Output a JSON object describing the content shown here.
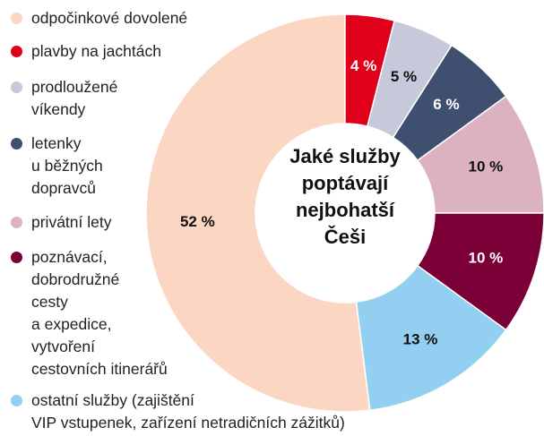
{
  "chart_data": {
    "type": "donut",
    "title": "Jaké služby\npoptávají\nnejbohatší\nČeši",
    "categories": [
      "odpočinkové dovolené",
      "plavby na jachtách",
      "prodloužené\nvíkendy",
      "letenky\nu běžných\ndopravců",
      "privátní lety",
      "poznávací,\ndobrodružné\ncesty\na expedice,\nvytvoření\ncestovních itinerářů",
      "ostatní služby (zajištění\nVIP vstupenek, zařízení netradičních zážitků)"
    ],
    "values": [
      52,
      4,
      5,
      6,
      10,
      10,
      13
    ],
    "value_labels": [
      "52 %",
      "4 %",
      "5 %",
      "6 %",
      "10 %",
      "10 %",
      "13 %"
    ],
    "colors": [
      "#fbd6c2",
      "#e1001a",
      "#c6c9d9",
      "#3e4f6f",
      "#dcb1c0",
      "#7b0037",
      "#92cff1"
    ]
  }
}
